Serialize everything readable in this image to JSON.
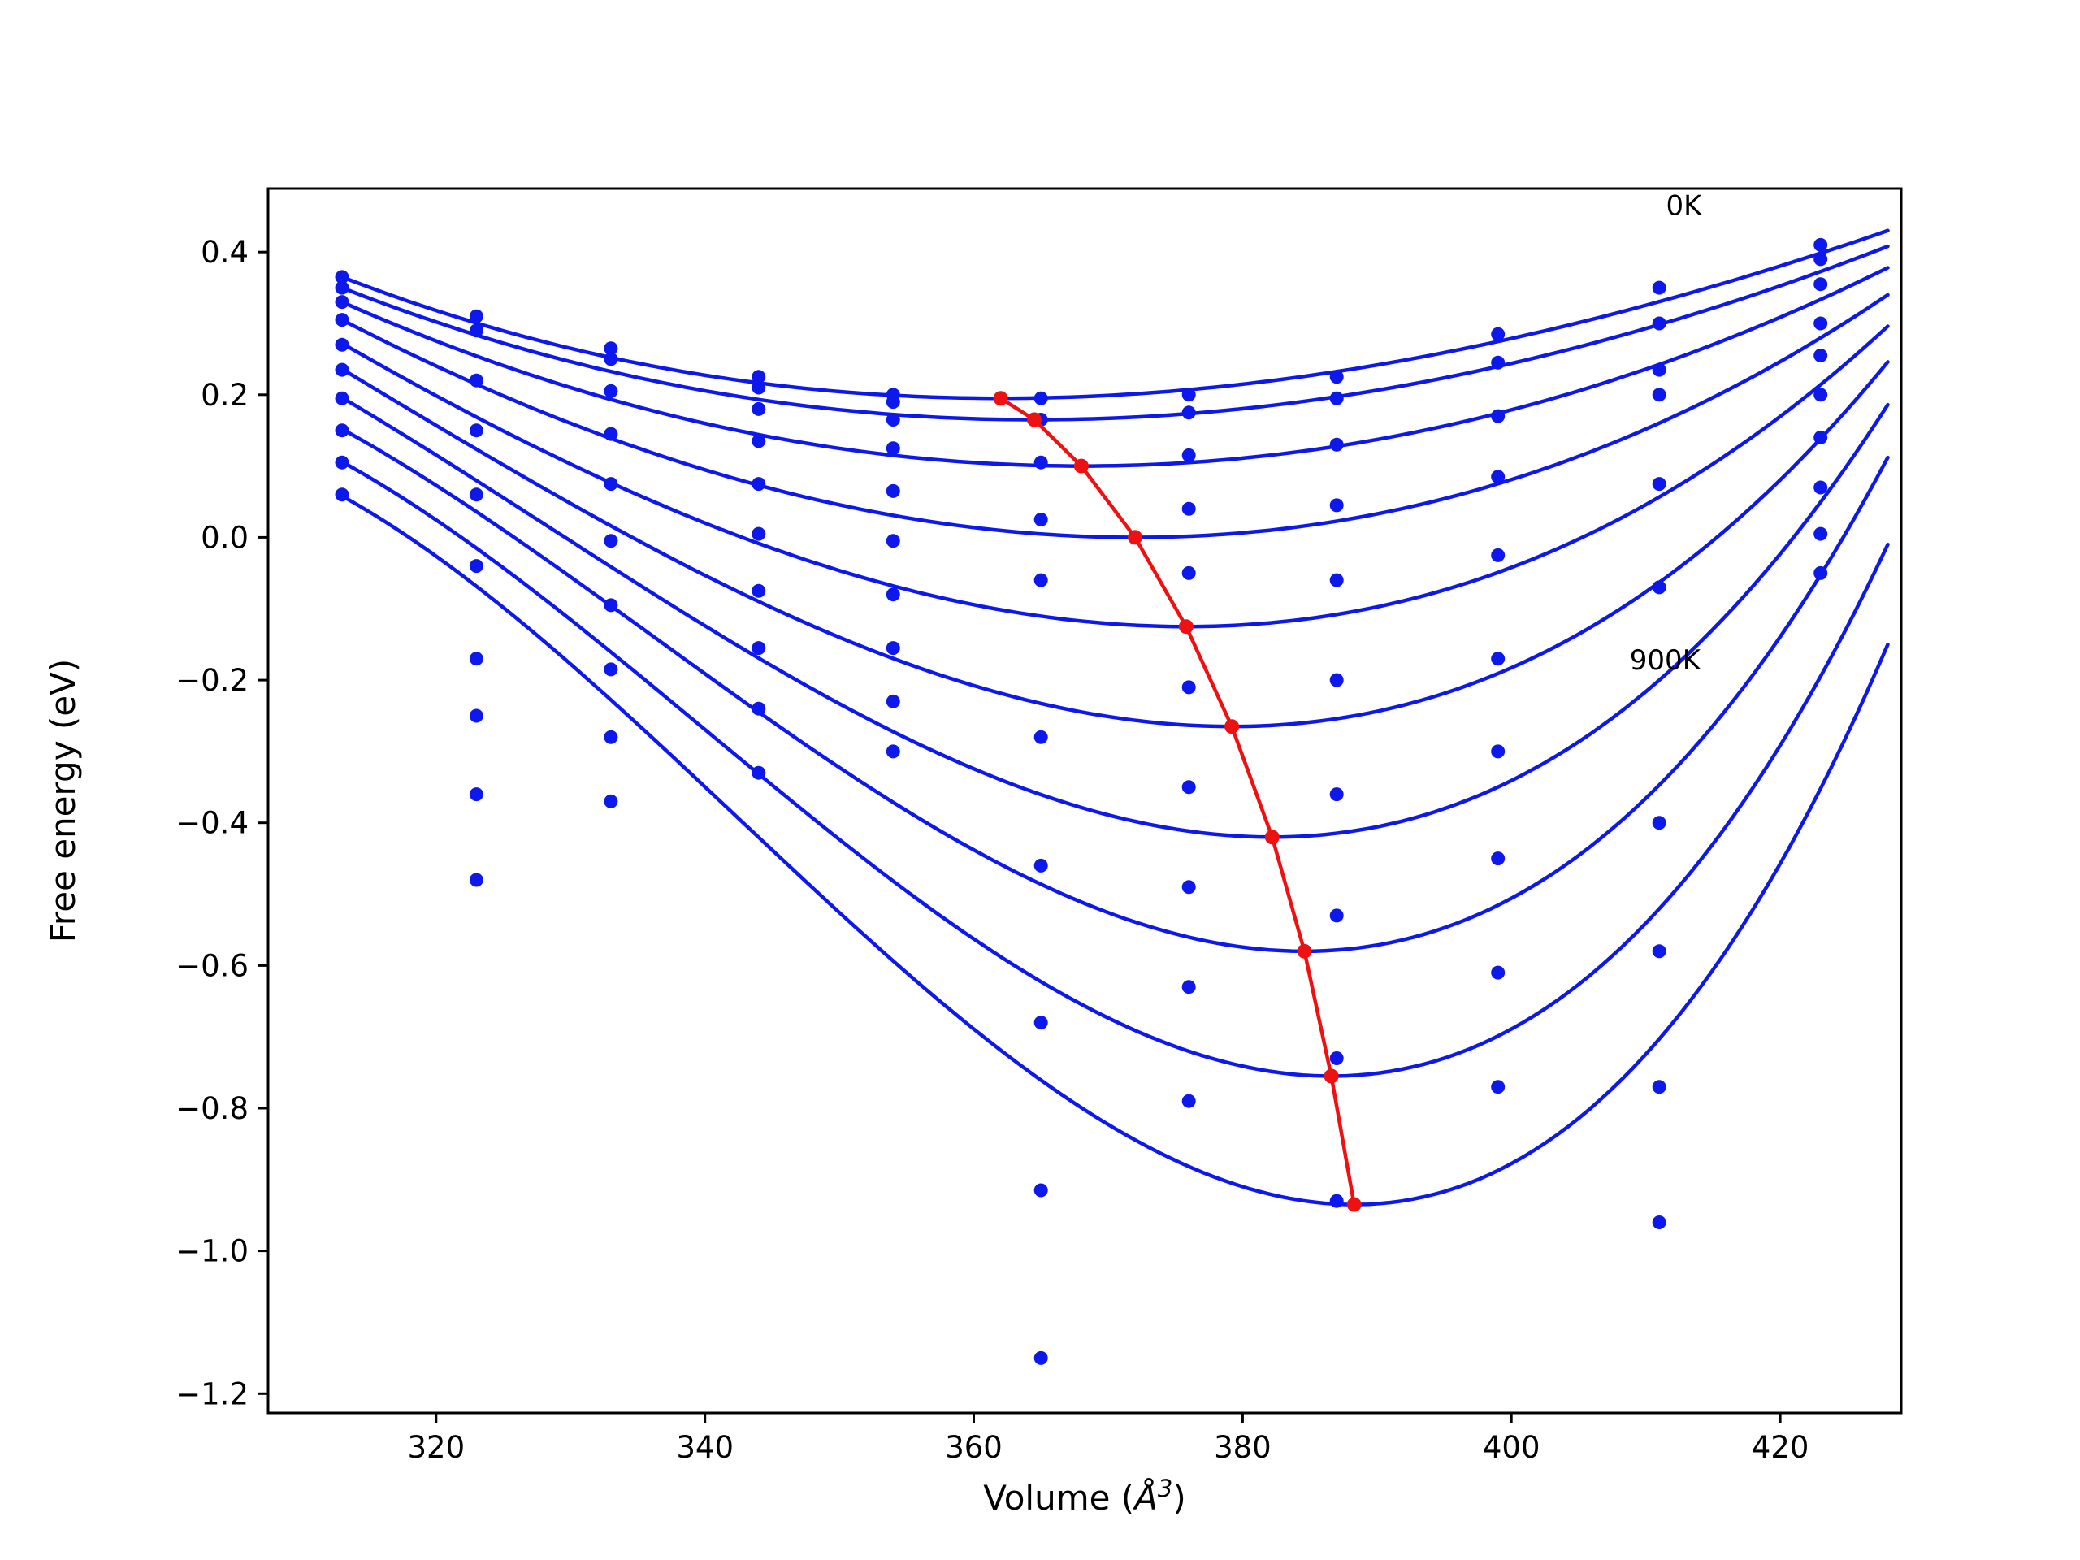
{
  "figure": {
    "background": "#ffffff",
    "annotations": [
      {
        "id": "label-0K",
        "text": "0K",
        "V": 411.5,
        "F": 0.452
      },
      {
        "id": "label-900K",
        "text": "900K",
        "V": 408.8,
        "F": -0.185
      }
    ]
  },
  "chart_data": {
    "type": "line",
    "title": "",
    "xlabel": {
      "pre": "Volume (",
      "symbol": "Å",
      "sup": "3",
      "post": ")"
    },
    "ylabel": "Free energy (eV)",
    "xlim": [
      307.5,
      429.0
    ],
    "ylim": [
      -1.227,
      0.489
    ],
    "xticks": [
      320,
      340,
      360,
      380,
      400,
      420
    ],
    "yticks": [
      -1.2,
      -1.0,
      -0.8,
      -0.6,
      -0.4,
      -0.2,
      0.0,
      0.2,
      0.4
    ],
    "grid": false,
    "legend": "none",
    "colors": {
      "curves": "#0d18ec",
      "scatter": "#0d18ec",
      "minima_path": "#ee1111",
      "axes": "#000000"
    },
    "temperatures_K": [
      0,
      100,
      200,
      300,
      400,
      500,
      600,
      700,
      800,
      900
    ],
    "fit_volume_range": [
      313,
      428
    ],
    "curves": [
      {
        "T": 0,
        "V0": 362.0,
        "F0": 0.195,
        "F_left": 0.365,
        "F_right": 0.43
      },
      {
        "T": 100,
        "V0": 364.5,
        "F0": 0.165,
        "F_left": 0.35,
        "F_right": 0.408
      },
      {
        "T": 200,
        "V0": 368.0,
        "F0": 0.1,
        "F_left": 0.33,
        "F_right": 0.378
      },
      {
        "T": 300,
        "V0": 372.0,
        "F0": 0.0,
        "F_left": 0.305,
        "F_right": 0.34
      },
      {
        "T": 400,
        "V0": 375.8,
        "F0": -0.125,
        "F_left": 0.272,
        "F_right": 0.296
      },
      {
        "T": 500,
        "V0": 379.2,
        "F0": -0.265,
        "F_left": 0.236,
        "F_right": 0.246
      },
      {
        "T": 600,
        "V0": 382.2,
        "F0": -0.42,
        "F_left": 0.196,
        "F_right": 0.186
      },
      {
        "T": 700,
        "V0": 384.6,
        "F0": -0.58,
        "F_left": 0.152,
        "F_right": 0.112
      },
      {
        "T": 800,
        "V0": 386.6,
        "F0": -0.755,
        "F_left": 0.106,
        "F_right": -0.01
      },
      {
        "T": 900,
        "V0": 388.3,
        "F0": -0.935,
        "F_left": 0.058,
        "F_right": -0.15
      }
    ],
    "equilibrium_points": [
      {
        "T": 0,
        "V": 362.0,
        "F": 0.195
      },
      {
        "T": 100,
        "V": 364.5,
        "F": 0.165
      },
      {
        "T": 200,
        "V": 368.0,
        "F": 0.1
      },
      {
        "T": 300,
        "V": 372.0,
        "F": 0.0
      },
      {
        "T": 400,
        "V": 375.8,
        "F": -0.125
      },
      {
        "T": 500,
        "V": 379.2,
        "F": -0.265
      },
      {
        "T": 600,
        "V": 382.2,
        "F": -0.42
      },
      {
        "T": 700,
        "V": 384.6,
        "F": -0.58
      },
      {
        "T": 800,
        "V": 386.6,
        "F": -0.755
      },
      {
        "T": 900,
        "V": 388.3,
        "F": -0.935
      }
    ],
    "scatter": {
      "volumes": [
        313,
        323,
        333,
        344,
        354,
        365,
        376,
        387,
        399,
        411,
        423
      ],
      "energies_by_temperature": [
        [
          0.365,
          0.31,
          0.265,
          0.225,
          0.2,
          0.195,
          0.2,
          0.225,
          0.285,
          0.35,
          0.41
        ],
        [
          0.35,
          0.29,
          0.25,
          0.21,
          0.19,
          0.165,
          0.175,
          0.195,
          0.245,
          0.3,
          0.39
        ],
        [
          0.33,
          0.22,
          0.205,
          0.18,
          0.165,
          0.105,
          0.115,
          0.13,
          0.17,
          0.235,
          0.355
        ],
        [
          0.305,
          0.15,
          0.145,
          0.135,
          0.125,
          0.025,
          0.04,
          0.045,
          0.085,
          0.2,
          0.3
        ],
        [
          0.27,
          0.06,
          0.075,
          0.075,
          0.065,
          -0.06,
          -0.05,
          -0.06,
          -0.025,
          0.075,
          0.255
        ],
        [
          0.235,
          -0.04,
          -0.005,
          0.005,
          -0.005,
          -0.28,
          -0.21,
          -0.2,
          -0.17,
          -0.07,
          0.2
        ],
        [
          0.195,
          -0.17,
          -0.095,
          -0.075,
          -0.08,
          -0.46,
          -0.35,
          -0.36,
          -0.3,
          -0.4,
          0.14
        ],
        [
          0.15,
          -0.25,
          -0.185,
          -0.155,
          -0.155,
          -0.68,
          -0.49,
          -0.53,
          -0.45,
          -0.58,
          0.07
        ],
        [
          0.105,
          -0.36,
          -0.28,
          -0.24,
          -0.23,
          -0.915,
          -0.63,
          -0.73,
          -0.61,
          -0.77,
          0.005
        ],
        [
          0.06,
          -0.48,
          -0.37,
          -0.33,
          -0.3,
          -1.15,
          -0.79,
          -0.93,
          -0.77,
          -0.96,
          -0.05
        ]
      ]
    }
  }
}
